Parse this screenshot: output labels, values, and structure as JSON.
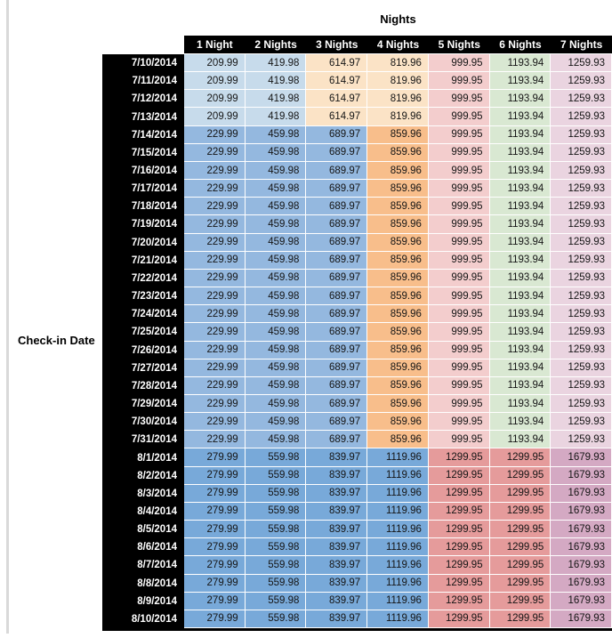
{
  "palette": {
    "header_bg": "#000000",
    "header_text": "#ffffff",
    "date_bg": "#000000",
    "date_text": "#ffffff",
    "value_text": "#151515",
    "frame": "#000000",
    "left_strip": "#d9d9d9",
    "group_colors": {
      "early": [
        "#C7DBEB",
        "#C7DBEB",
        "#FBE3C6",
        "#FBE3C6",
        "#F3CDCD",
        "#D9E8D2",
        "#EAD4E0"
      ],
      "mid": [
        "#94B8DF",
        "#94B8DF",
        "#94B8DF",
        "#F8BE8B",
        "#F3CDCD",
        "#D9E8D2",
        "#EAD4E0"
      ],
      "late": [
        "#78A9D9",
        "#78A9D9",
        "#78A9D9",
        "#78A9D9",
        "#E59B9B",
        "#E59B9B",
        "#D4A9C3"
      ]
    }
  },
  "chart_data": {
    "type": "table",
    "title": "Nights",
    "row_label": "Check-in Date",
    "columns": [
      "1 Night",
      "2 Nights",
      "3 Nights",
      "4 Nights",
      "5 Nights",
      "6 Nights",
      "7 Nights"
    ],
    "rows": [
      {
        "date": "7/10/2014",
        "group": "early",
        "values": [
          209.99,
          419.98,
          614.97,
          819.96,
          999.95,
          1193.94,
          1259.93
        ]
      },
      {
        "date": "7/11/2014",
        "group": "early",
        "values": [
          209.99,
          419.98,
          614.97,
          819.96,
          999.95,
          1193.94,
          1259.93
        ]
      },
      {
        "date": "7/12/2014",
        "group": "early",
        "values": [
          209.99,
          419.98,
          614.97,
          819.96,
          999.95,
          1193.94,
          1259.93
        ]
      },
      {
        "date": "7/13/2014",
        "group": "early",
        "values": [
          209.99,
          419.98,
          614.97,
          819.96,
          999.95,
          1193.94,
          1259.93
        ]
      },
      {
        "date": "7/14/2014",
        "group": "mid",
        "values": [
          229.99,
          459.98,
          689.97,
          859.96,
          999.95,
          1193.94,
          1259.93
        ]
      },
      {
        "date": "7/15/2014",
        "group": "mid",
        "values": [
          229.99,
          459.98,
          689.97,
          859.96,
          999.95,
          1193.94,
          1259.93
        ]
      },
      {
        "date": "7/16/2014",
        "group": "mid",
        "values": [
          229.99,
          459.98,
          689.97,
          859.96,
          999.95,
          1193.94,
          1259.93
        ]
      },
      {
        "date": "7/17/2014",
        "group": "mid",
        "values": [
          229.99,
          459.98,
          689.97,
          859.96,
          999.95,
          1193.94,
          1259.93
        ]
      },
      {
        "date": "7/18/2014",
        "group": "mid",
        "values": [
          229.99,
          459.98,
          689.97,
          859.96,
          999.95,
          1193.94,
          1259.93
        ]
      },
      {
        "date": "7/19/2014",
        "group": "mid",
        "values": [
          229.99,
          459.98,
          689.97,
          859.96,
          999.95,
          1193.94,
          1259.93
        ]
      },
      {
        "date": "7/20/2014",
        "group": "mid",
        "values": [
          229.99,
          459.98,
          689.97,
          859.96,
          999.95,
          1193.94,
          1259.93
        ]
      },
      {
        "date": "7/21/2014",
        "group": "mid",
        "values": [
          229.99,
          459.98,
          689.97,
          859.96,
          999.95,
          1193.94,
          1259.93
        ]
      },
      {
        "date": "7/22/2014",
        "group": "mid",
        "values": [
          229.99,
          459.98,
          689.97,
          859.96,
          999.95,
          1193.94,
          1259.93
        ]
      },
      {
        "date": "7/23/2014",
        "group": "mid",
        "values": [
          229.99,
          459.98,
          689.97,
          859.96,
          999.95,
          1193.94,
          1259.93
        ]
      },
      {
        "date": "7/24/2014",
        "group": "mid",
        "values": [
          229.99,
          459.98,
          689.97,
          859.96,
          999.95,
          1193.94,
          1259.93
        ]
      },
      {
        "date": "7/25/2014",
        "group": "mid",
        "values": [
          229.99,
          459.98,
          689.97,
          859.96,
          999.95,
          1193.94,
          1259.93
        ]
      },
      {
        "date": "7/26/2014",
        "group": "mid",
        "values": [
          229.99,
          459.98,
          689.97,
          859.96,
          999.95,
          1193.94,
          1259.93
        ]
      },
      {
        "date": "7/27/2014",
        "group": "mid",
        "values": [
          229.99,
          459.98,
          689.97,
          859.96,
          999.95,
          1193.94,
          1259.93
        ]
      },
      {
        "date": "7/28/2014",
        "group": "mid",
        "values": [
          229.99,
          459.98,
          689.97,
          859.96,
          999.95,
          1193.94,
          1259.93
        ]
      },
      {
        "date": "7/29/2014",
        "group": "mid",
        "values": [
          229.99,
          459.98,
          689.97,
          859.96,
          999.95,
          1193.94,
          1259.93
        ]
      },
      {
        "date": "7/30/2014",
        "group": "mid",
        "values": [
          229.99,
          459.98,
          689.97,
          859.96,
          999.95,
          1193.94,
          1259.93
        ]
      },
      {
        "date": "7/31/2014",
        "group": "mid",
        "values": [
          229.99,
          459.98,
          689.97,
          859.96,
          999.95,
          1193.94,
          1259.93
        ]
      },
      {
        "date": "8/1/2014",
        "group": "late",
        "values": [
          279.99,
          559.98,
          839.97,
          1119.96,
          1299.95,
          1299.95,
          1679.93
        ]
      },
      {
        "date": "8/2/2014",
        "group": "late",
        "values": [
          279.99,
          559.98,
          839.97,
          1119.96,
          1299.95,
          1299.95,
          1679.93
        ]
      },
      {
        "date": "8/3/2014",
        "group": "late",
        "values": [
          279.99,
          559.98,
          839.97,
          1119.96,
          1299.95,
          1299.95,
          1679.93
        ]
      },
      {
        "date": "8/4/2014",
        "group": "late",
        "values": [
          279.99,
          559.98,
          839.97,
          1119.96,
          1299.95,
          1299.95,
          1679.93
        ]
      },
      {
        "date": "8/5/2014",
        "group": "late",
        "values": [
          279.99,
          559.98,
          839.97,
          1119.96,
          1299.95,
          1299.95,
          1679.93
        ]
      },
      {
        "date": "8/6/2014",
        "group": "late",
        "values": [
          279.99,
          559.98,
          839.97,
          1119.96,
          1299.95,
          1299.95,
          1679.93
        ]
      },
      {
        "date": "8/7/2014",
        "group": "late",
        "values": [
          279.99,
          559.98,
          839.97,
          1119.96,
          1299.95,
          1299.95,
          1679.93
        ]
      },
      {
        "date": "8/8/2014",
        "group": "late",
        "values": [
          279.99,
          559.98,
          839.97,
          1119.96,
          1299.95,
          1299.95,
          1679.93
        ]
      },
      {
        "date": "8/9/2014",
        "group": "late",
        "values": [
          279.99,
          559.98,
          839.97,
          1119.96,
          1299.95,
          1299.95,
          1679.93
        ]
      },
      {
        "date": "8/10/2014",
        "group": "late",
        "values": [
          279.99,
          559.98,
          839.97,
          1119.96,
          1299.95,
          1299.95,
          1679.93
        ]
      }
    ]
  }
}
